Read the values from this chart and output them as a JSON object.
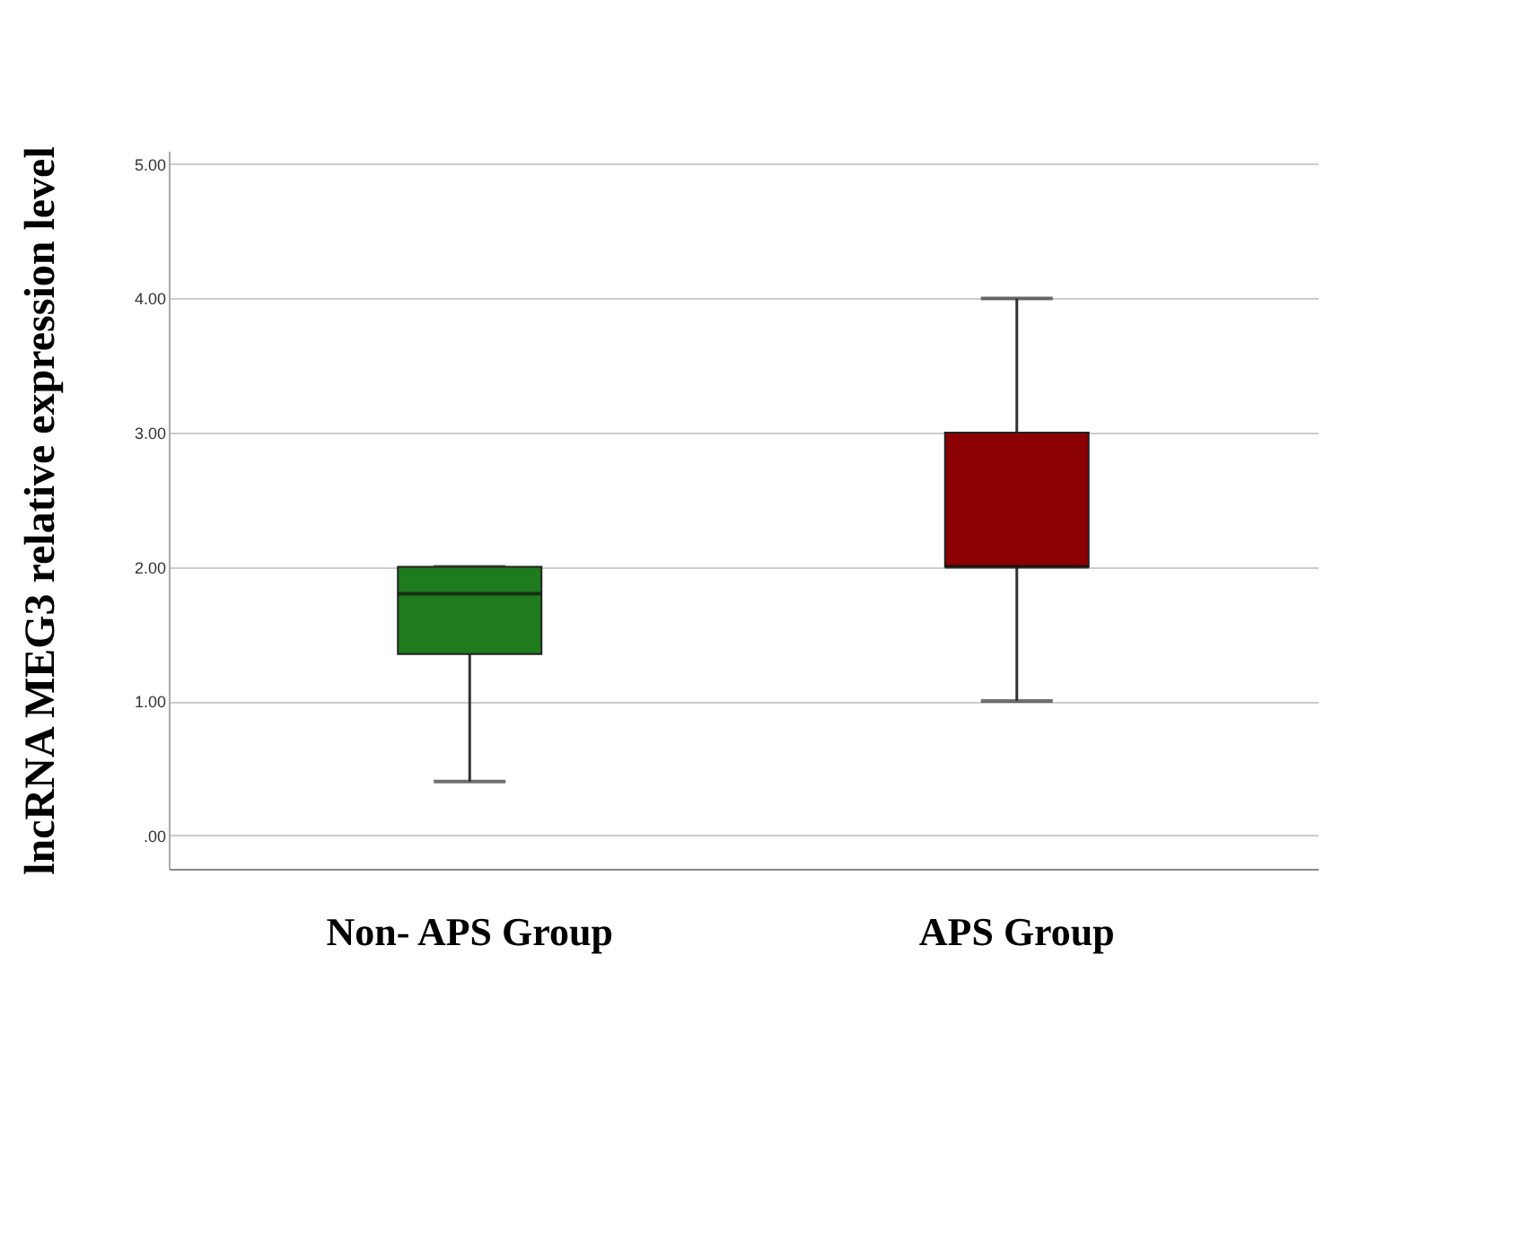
{
  "chart_data": {
    "type": "box",
    "ylabel": "lncRNA MEG3 relative expression level",
    "categories": [
      "Non- APS Group",
      "APS Group"
    ],
    "boxes": [
      {
        "low": 0.4,
        "q1": 1.35,
        "median": 1.8,
        "q3": 2.0,
        "high": 2.0
      },
      {
        "low": 1.0,
        "q1": 2.0,
        "median": 2.0,
        "q3": 3.0,
        "high": 4.0
      }
    ],
    "colors": [
      "#1e7b1e",
      "#8b0000"
    ],
    "ylim": [
      -0.25,
      5.1
    ],
    "yticks": [
      {
        "value": 0,
        "label": ".00"
      },
      {
        "value": 1,
        "label": "1.00"
      },
      {
        "value": 2,
        "label": "2.00"
      },
      {
        "value": 3,
        "label": "3.00"
      },
      {
        "value": 4,
        "label": "4.00"
      },
      {
        "value": 5,
        "label": "5.00"
      }
    ],
    "grid": "y"
  }
}
